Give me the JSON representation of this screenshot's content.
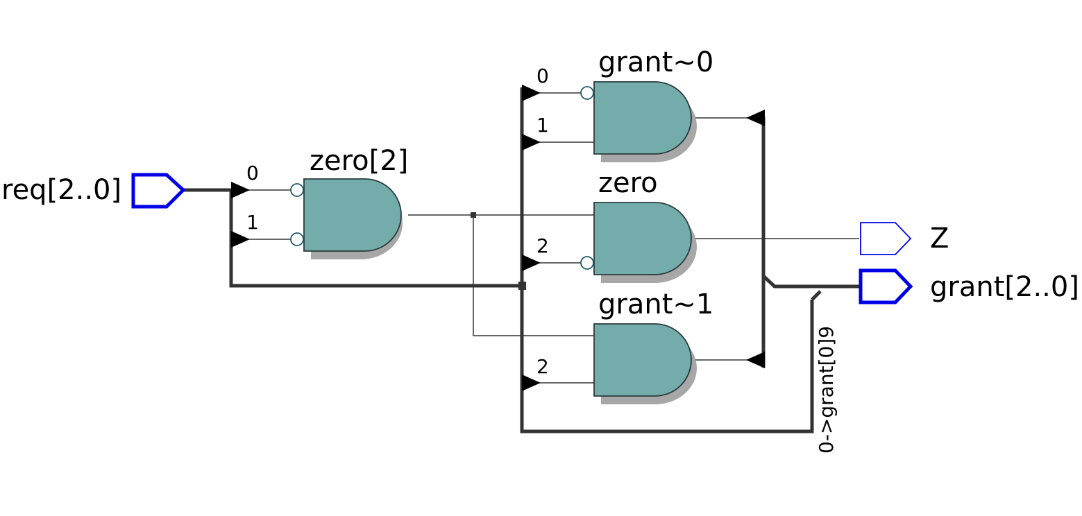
{
  "ports": {
    "input": "req[2..0]",
    "output_z": "Z",
    "output_grant": "grant[2..0]"
  },
  "gates": {
    "zero2": {
      "name": "zero[2]",
      "pin_a": "0",
      "pin_b": "1"
    },
    "grant0": {
      "name": "grant~0",
      "pin_a": "0",
      "pin_b": "1"
    },
    "zero": {
      "name": "zero",
      "pin_b": "2"
    },
    "grant1": {
      "name": "grant~1",
      "pin_b": "2"
    }
  },
  "bus_label": "0->grant[0]9",
  "colors": {
    "gate_fill": "#74acac",
    "port_stroke": "#0000e6",
    "wire": "#333333"
  }
}
